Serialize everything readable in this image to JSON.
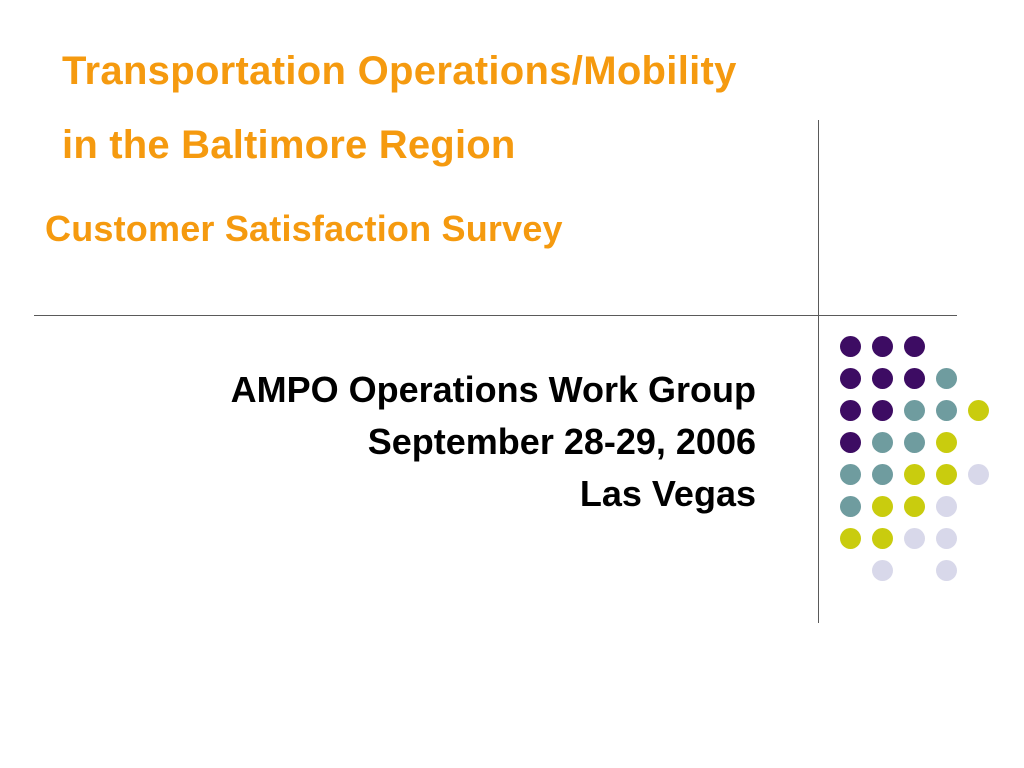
{
  "title": {
    "line1": "Transportation Operations/Mobility",
    "line2": "in the Baltimore Region"
  },
  "subtitle": "Customer Satisfaction Survey",
  "info": {
    "line1": "AMPO Operations Work Group",
    "line2": "September 28-29, 2006",
    "line3": "Las Vegas"
  },
  "colors": {
    "title_orange": "#f59a0f",
    "purple": "#3d0c63",
    "teal": "#6f9c9f",
    "lime": "#c9cc0e",
    "lavender": "#d8d8ea",
    "rule": "#5a5a5a"
  },
  "dot_grid": [
    [
      "purple",
      "purple",
      "purple",
      null,
      null
    ],
    [
      "purple",
      "purple",
      "purple",
      "teal",
      null
    ],
    [
      "purple",
      "purple",
      "teal",
      "teal",
      "lime"
    ],
    [
      "purple",
      "teal",
      "teal",
      "lime",
      null
    ],
    [
      "teal",
      "teal",
      "lime",
      "lime",
      "lavender"
    ],
    [
      "teal",
      "lime",
      "lime",
      "lavender",
      null
    ],
    [
      "lime",
      "lime",
      "lavender",
      "lavender",
      null
    ],
    [
      null,
      "lavender",
      null,
      "lavender",
      null
    ]
  ]
}
